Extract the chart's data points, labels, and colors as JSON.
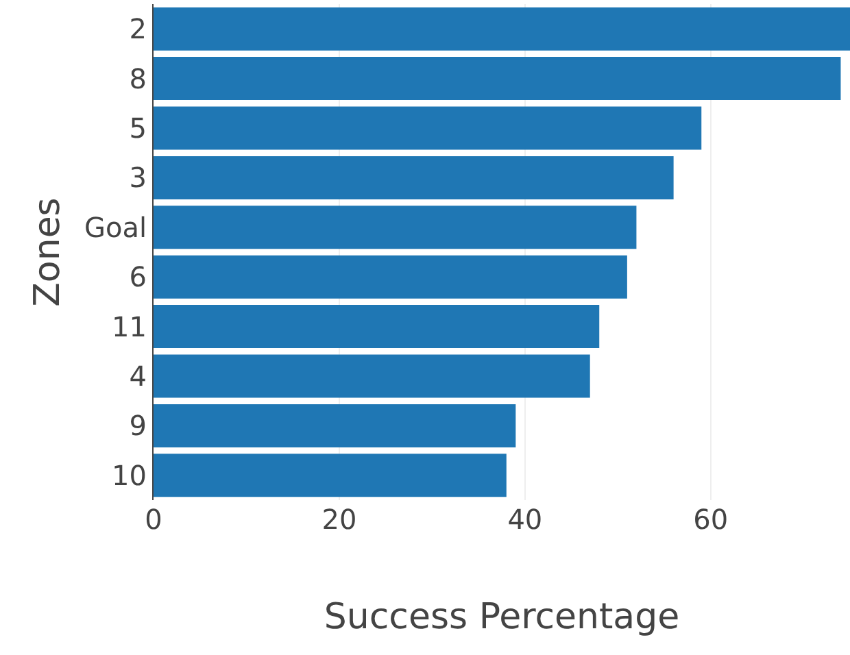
{
  "chart_data": {
    "type": "bar",
    "orientation": "horizontal",
    "xlabel": "Success Percentage",
    "ylabel": "Zones",
    "categories": [
      "2",
      "8",
      "5",
      "3",
      "Goal",
      "6",
      "11",
      "4",
      "9",
      "10"
    ],
    "values": [
      75,
      74,
      59,
      56,
      52,
      51,
      48,
      47,
      39,
      38
    ],
    "color": "#1f77b4",
    "xlim": [
      0,
      75
    ],
    "xticks": [
      0,
      20,
      40,
      60
    ],
    "grid": "x",
    "legend": false
  }
}
